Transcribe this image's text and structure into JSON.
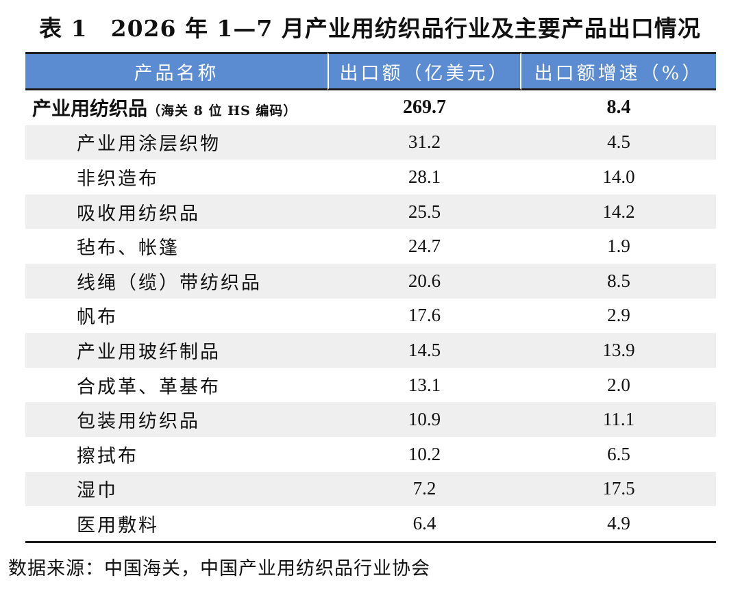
{
  "title": "表 1　2026 年 1—7 月产业用纺织品行业及主要产品出口情况",
  "table": {
    "headers": [
      "产品名称",
      "出口额（亿美元）",
      "出口额增速（%）"
    ],
    "total": {
      "name": "产业用纺织品",
      "note": "（海关 8 位 HS 编码）",
      "value": "269.7",
      "growth": "8.4"
    },
    "rows": [
      {
        "name": "产业用涂层织物",
        "value": "31.2",
        "growth": "4.5"
      },
      {
        "name": "非织造布",
        "value": "28.1",
        "growth": "14.0"
      },
      {
        "name": "吸收用纺织品",
        "value": "25.5",
        "growth": "14.2"
      },
      {
        "name": "毡布、帐篷",
        "value": "24.7",
        "growth": "1.9"
      },
      {
        "name": "线绳（缆）带纺织品",
        "value": "20.6",
        "growth": "8.5"
      },
      {
        "name": "帆布",
        "value": "17.6",
        "growth": "2.9"
      },
      {
        "name": "产业用玻纤制品",
        "value": "14.5",
        "growth": "13.9"
      },
      {
        "name": "合成革、革基布",
        "value": "13.1",
        "growth": "2.0"
      },
      {
        "name": "包装用纺织品",
        "value": "10.9",
        "growth": "11.1"
      },
      {
        "name": "擦拭布",
        "value": "10.2",
        "growth": "6.5"
      },
      {
        "name": "湿巾",
        "value": "7.2",
        "growth": "17.5"
      },
      {
        "name": "医用敷料",
        "value": "6.4",
        "growth": "4.9"
      }
    ]
  },
  "source": "数据来源：中国海关，中国产业用纺织品行业协会",
  "colors": {
    "header_bg": "#5b8bd0",
    "header_text": "#ffffff",
    "alt_row_bg": "#efefef"
  }
}
